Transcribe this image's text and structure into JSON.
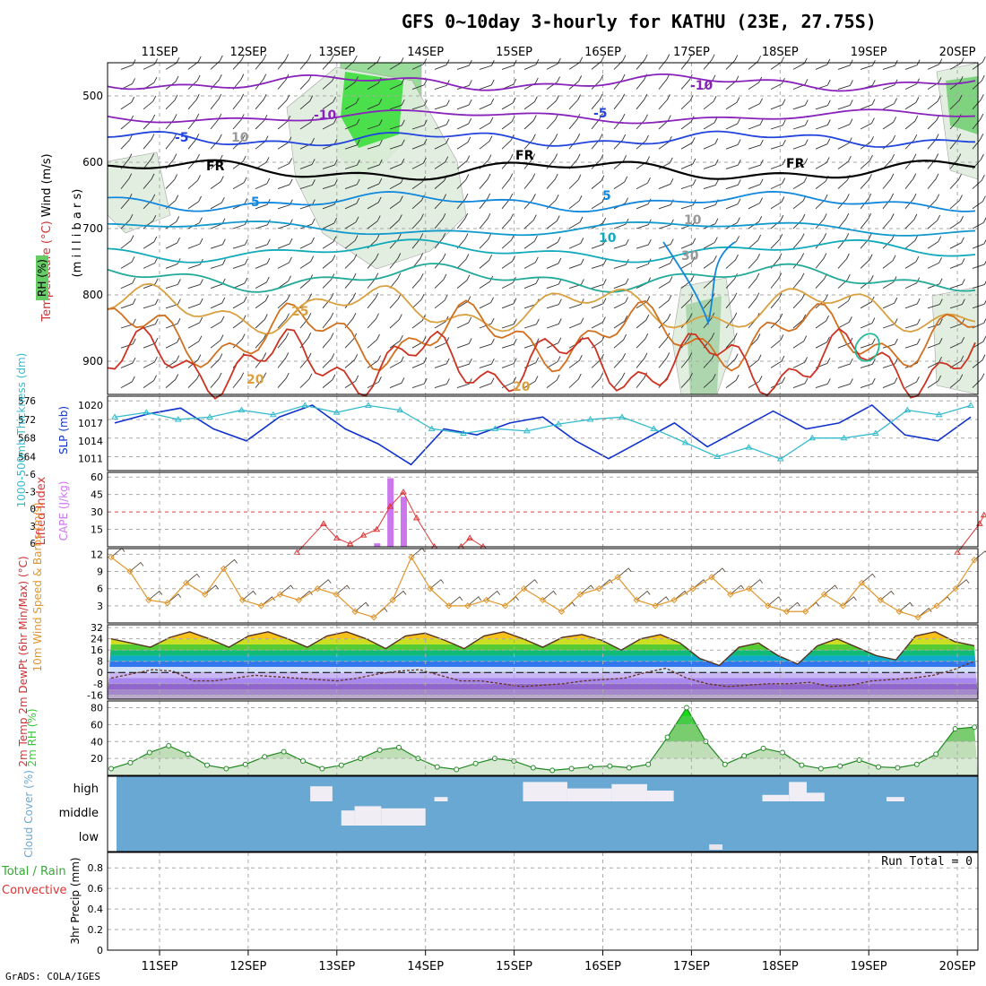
{
  "title": "GFS 0~10day 3-hourly for KATHU (23E, 27.75S)",
  "footer": "GrADS: COLA/IGES",
  "colors": {
    "temperature": "#cc3333",
    "wind_label": "#000000",
    "rh": "#33cc33",
    "slp": "#1133cc",
    "thickness": "#33bbcc",
    "lifted_index": "#dd3333",
    "cape": "#cc77ee",
    "wind_speed": "#e0962c",
    "cloud": "#6aa8d4",
    "precip_label": "#33aa33",
    "convective": "#dd3333"
  },
  "chart_data": [
    {
      "id": "profile",
      "type": "contour",
      "ylabel_parts": [
        "Temperature",
        "(°C)",
        "Wind",
        "(m/s)"
      ],
      "ylabel2": "(m i l l i b a r s)",
      "rh_label": "RH (%)",
      "dates": [
        "11SEP",
        "12SEP",
        "13SEP",
        "14SEP",
        "15SEP",
        "16SEP",
        "17SEP",
        "18SEP",
        "19SEP",
        "20SEP"
      ],
      "yticks": [
        500,
        600,
        700,
        800,
        900
      ],
      "ylim": [
        950,
        450
      ],
      "contour_labels": [
        "-10",
        "-10",
        "-5",
        "-5",
        "10",
        "FR",
        "FR",
        "FR",
        "5",
        "5",
        "10",
        "30",
        "25",
        "20",
        "20",
        "10"
      ]
    },
    {
      "id": "slp",
      "type": "line",
      "ylabel": "1000-500mb Thickness (dm)",
      "ylabel_right": "SLP (mb)",
      "thickness_ticks": [
        564,
        568,
        572,
        576
      ],
      "slp_ticks": [
        1011,
        1014,
        1017,
        1020
      ],
      "thickness_range": [
        561,
        577
      ],
      "slp_range": [
        1009,
        1021.5
      ],
      "series": [
        {
          "values": [
            1017,
            1018.5,
            1019.5,
            1016,
            1014,
            1018,
            1020,
            1016,
            1013.5,
            1010,
            1016,
            1015,
            1017,
            1018,
            1014,
            1011,
            1014,
            1017,
            1013,
            1016,
            1019,
            1016,
            1017,
            1020,
            1015,
            1014,
            1018
          ]
        },
        {
          "values": [
            572.5,
            573.5,
            572,
            572.5,
            574,
            573,
            575,
            573.5,
            575,
            574,
            570,
            569,
            570,
            569.5,
            571,
            572,
            572.5,
            570,
            567,
            564,
            566,
            563.5,
            568,
            568,
            569,
            574,
            573,
            575
          ]
        }
      ]
    },
    {
      "id": "cape",
      "type": "bar",
      "ylabel": "Lifted Index",
      "ylabel_right": "CAPE (J/kg)",
      "li_ticks": [
        "-6",
        "-3",
        "0",
        "3",
        "6"
      ],
      "cape_ticks": [
        15,
        30,
        45,
        60
      ],
      "cape_range": [
        0,
        64
      ],
      "bars": [
        {
          "x": 13.45,
          "value": 3
        },
        {
          "x": 13.6,
          "value": 59
        },
        {
          "x": 13.75,
          "value": 43
        }
      ],
      "li_points": [
        [
          12.55,
          7
        ],
        [
          12.85,
          2
        ],
        [
          13.0,
          4.5
        ],
        [
          13.15,
          5.5
        ],
        [
          13.3,
          4
        ],
        [
          13.45,
          3
        ],
        [
          13.6,
          -1
        ],
        [
          13.75,
          -3.5
        ],
        [
          13.9,
          1
        ],
        [
          14.1,
          6
        ],
        [
          14.4,
          6
        ],
        [
          14.5,
          4.5
        ],
        [
          14.65,
          6
        ],
        [
          20.0,
          7
        ],
        [
          20.25,
          2
        ],
        [
          20.3,
          0.5
        ]
      ]
    },
    {
      "id": "wind",
      "type": "line",
      "ylabel": "10m Wind Speed & Barbs (m/s)",
      "yticks": [
        3,
        6,
        9,
        12
      ],
      "ylim": [
        0,
        13
      ],
      "values": [
        11.5,
        9,
        4,
        3.5,
        7,
        5,
        9.5,
        4,
        3,
        5,
        4,
        6,
        5,
        2,
        1,
        4,
        11.5,
        6,
        3,
        3,
        4,
        3,
        6,
        4,
        2,
        5,
        6,
        8,
        4,
        3,
        4,
        6,
        8,
        5,
        6,
        3,
        2,
        2,
        5,
        3,
        7,
        4,
        2,
        1,
        3,
        6,
        11
      ]
    },
    {
      "id": "temp",
      "type": "area",
      "ylabel": "2m Temp 2m DewPt (6hr Min/Max) (°C)",
      "yticks": [
        -16,
        -8,
        0,
        8,
        16,
        24,
        32
      ],
      "ylim": [
        -19,
        34
      ],
      "temp_values": [
        24,
        21,
        18,
        25,
        29,
        24,
        18,
        26,
        29,
        24,
        18,
        26,
        29,
        24,
        17,
        26,
        28,
        23,
        17,
        26,
        29,
        24,
        18,
        25,
        27,
        23,
        16,
        24,
        27,
        21,
        10,
        5,
        18,
        21,
        12,
        6,
        19,
        24,
        18,
        12,
        9,
        26,
        29,
        22,
        19
      ],
      "dew_values": [
        -4,
        -1,
        2,
        1,
        -6,
        -6,
        -4,
        -2,
        -3,
        -4,
        -5,
        -6,
        -4,
        -1,
        1,
        2,
        -2,
        -6,
        -6,
        -8,
        -10,
        -9,
        -8,
        -6,
        -5,
        -4,
        0,
        3,
        -4,
        -8,
        -10,
        -9,
        -8,
        -8,
        -7,
        -10,
        -9,
        -6,
        -5,
        -4,
        -2,
        2,
        8
      ]
    },
    {
      "id": "rh",
      "type": "area",
      "ylabel": "2m RH (%)",
      "yticks": [
        20,
        40,
        60,
        80
      ],
      "ylim": [
        0,
        88
      ],
      "values": [
        8,
        15,
        27,
        35,
        25,
        12,
        8,
        13,
        22,
        28,
        17,
        8,
        12,
        20,
        30,
        33,
        20,
        10,
        7,
        14,
        20,
        17,
        9,
        6,
        8,
        10,
        11,
        9,
        13,
        45,
        80,
        40,
        13,
        23,
        32,
        27,
        12,
        8,
        11,
        18,
        10,
        9,
        13,
        25,
        55,
        57
      ]
    },
    {
      "id": "cloud",
      "type": "heatmap",
      "ylabel": "Cloud Cover (%)",
      "rows": [
        "high",
        "middle",
        "low"
      ],
      "high_cells": [
        [
          12.7,
          12.95,
          0.7
        ],
        [
          14.1,
          14.25,
          0.2
        ],
        [
          15.1,
          15.6,
          0.9
        ],
        [
          15.6,
          16.1,
          0.6
        ],
        [
          16.1,
          16.5,
          0.8
        ],
        [
          16.5,
          16.8,
          0.5
        ],
        [
          17.8,
          18.1,
          0.3
        ],
        [
          18.1,
          18.3,
          0.9
        ],
        [
          18.3,
          18.5,
          0.4
        ],
        [
          19.2,
          19.4,
          0.2
        ]
      ],
      "mid_cells": [
        [
          13.05,
          13.2,
          0.7
        ],
        [
          13.2,
          13.5,
          0.9
        ],
        [
          13.5,
          14.0,
          0.8
        ]
      ],
      "low_cells": [
        [
          17.2,
          17.35,
          0.25
        ]
      ]
    },
    {
      "id": "precip",
      "type": "bar",
      "ylabel_left": "Total / Rain",
      "ylabel_left2": "Convective",
      "ylabel": "3hr Precip (mm)",
      "yticks": [
        "0",
        "0.2",
        "0.4",
        "0.6",
        "0.8"
      ],
      "ylim": [
        0,
        0.95
      ],
      "run_total_label": "Run Total = 0",
      "values": []
    }
  ]
}
